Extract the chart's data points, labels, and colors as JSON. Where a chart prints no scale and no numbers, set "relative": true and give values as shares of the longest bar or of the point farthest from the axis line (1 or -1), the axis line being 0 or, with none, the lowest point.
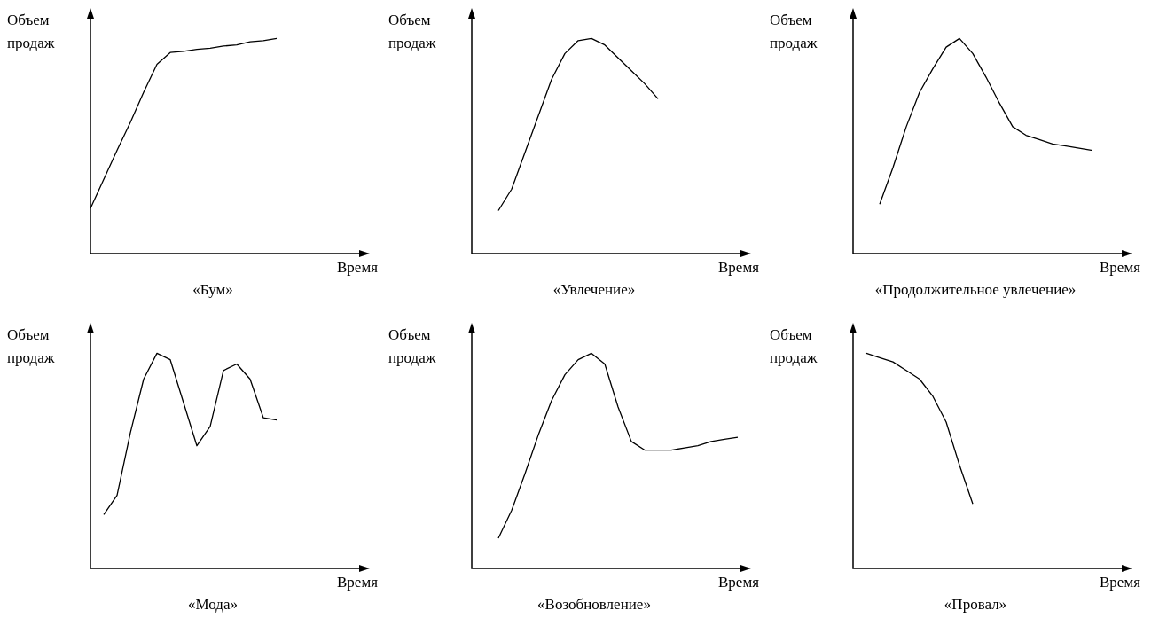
{
  "chart_data": [
    {
      "type": "line",
      "title": "«Бум»",
      "xlabel": "Время",
      "ylabel": "Объем продаж",
      "relative": true,
      "color": "#000000",
      "categories": [
        null,
        null,
        null,
        null,
        null,
        null,
        null,
        null,
        null,
        null,
        null,
        null,
        null,
        null,
        null,
        null,
        null,
        null,
        null,
        null,
        null
      ],
      "values": [
        0.21,
        0.345,
        0.48,
        0.61,
        0.75,
        0.88,
        0.935,
        0.94,
        0.95,
        0.955,
        0.965,
        0.97,
        0.985,
        0.99,
        1.0,
        null,
        null,
        null,
        null,
        null,
        null
      ]
    },
    {
      "type": "line",
      "title": "«Увлечение»",
      "xlabel": "Время",
      "ylabel": "Объем продаж",
      "relative": true,
      "color": "#000000",
      "categories": [
        null,
        null,
        null,
        null,
        null,
        null,
        null,
        null,
        null,
        null,
        null,
        null,
        null,
        null,
        null,
        null,
        null,
        null,
        null,
        null,
        null
      ],
      "values": [
        null,
        null,
        0.2,
        0.3,
        0.47,
        0.64,
        0.81,
        0.93,
        0.99,
        1.0,
        0.97,
        0.91,
        0.85,
        0.79,
        0.72,
        null,
        null,
        null,
        null,
        null,
        null
      ]
    },
    {
      "type": "line",
      "title": "«Продолжительное увлечение»",
      "xlabel": "Время",
      "ylabel": "Объем продаж",
      "relative": true,
      "color": "#000000",
      "categories": [
        null,
        null,
        null,
        null,
        null,
        null,
        null,
        null,
        null,
        null,
        null,
        null,
        null,
        null,
        null,
        null,
        null,
        null,
        null,
        null,
        null
      ],
      "values": [
        null,
        null,
        0.23,
        0.4,
        0.59,
        0.75,
        0.86,
        0.96,
        1.0,
        0.93,
        0.82,
        0.7,
        0.59,
        0.55,
        0.53,
        0.51,
        0.5,
        0.49,
        0.48,
        null,
        null
      ]
    },
    {
      "type": "line",
      "title": "«Мода»",
      "xlabel": "Время",
      "ylabel": "Объем продаж",
      "relative": true,
      "color": "#000000",
      "categories": [
        null,
        null,
        null,
        null,
        null,
        null,
        null,
        null,
        null,
        null,
        null,
        null,
        null,
        null,
        null,
        null,
        null,
        null,
        null,
        null,
        null
      ],
      "values": [
        null,
        0.25,
        0.34,
        0.63,
        0.88,
        1.0,
        0.97,
        0.77,
        0.57,
        0.66,
        0.92,
        0.95,
        0.88,
        0.7,
        0.69,
        null,
        null,
        null,
        null,
        null,
        null
      ]
    },
    {
      "type": "line",
      "title": "«Возобновление»",
      "xlabel": "Время",
      "ylabel": "Объем продаж",
      "relative": true,
      "color": "#000000",
      "categories": [
        null,
        null,
        null,
        null,
        null,
        null,
        null,
        null,
        null,
        null,
        null,
        null,
        null,
        null,
        null,
        null,
        null,
        null,
        null,
        null,
        null
      ],
      "values": [
        null,
        null,
        0.14,
        0.27,
        0.44,
        0.62,
        0.78,
        0.9,
        0.97,
        1.0,
        0.95,
        0.75,
        0.59,
        0.55,
        0.55,
        0.55,
        0.56,
        0.57,
        0.59,
        0.6,
        0.61
      ]
    },
    {
      "type": "line",
      "title": "«Провал»",
      "xlabel": "Время",
      "ylabel": "Объем продаж",
      "relative": true,
      "color": "#000000",
      "categories": [
        null,
        null,
        null,
        null,
        null,
        null,
        null,
        null,
        null,
        null,
        null,
        null,
        null,
        null,
        null,
        null,
        null,
        null,
        null,
        null,
        null
      ],
      "values": [
        null,
        1.0,
        0.98,
        0.96,
        0.92,
        0.88,
        0.8,
        0.68,
        0.48,
        0.3,
        null,
        null,
        null,
        null,
        null,
        null,
        null,
        null,
        null,
        null,
        null
      ]
    }
  ]
}
